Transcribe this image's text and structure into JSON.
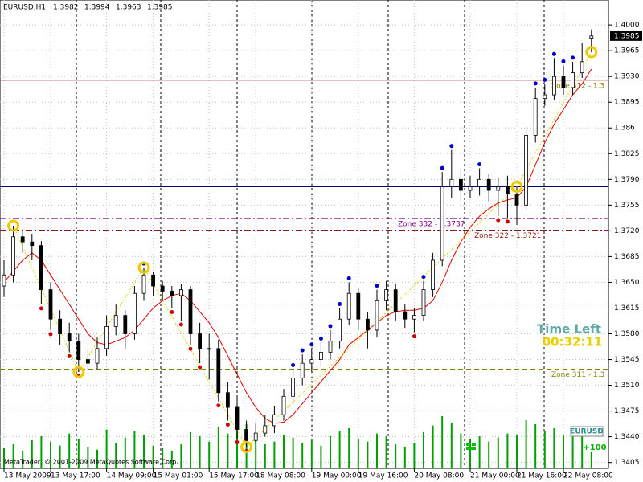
{
  "chart_data": {
    "type": "candlestick",
    "title": "EURUSD,H1",
    "open": [
      1.3645,
      1.366,
      1.3712,
      1.3705,
      1.37,
      1.364,
      1.36,
      1.358,
      1.357,
      1.3545,
      1.354,
      1.356,
      1.359,
      1.3605,
      1.358,
      1.3635,
      1.366,
      1.3645,
      1.3638,
      1.3632,
      1.364,
      1.358,
      1.356,
      1.356,
      1.35,
      1.348,
      1.345,
      1.3435,
      1.3445,
      1.3455,
      1.347,
      1.3495,
      1.352,
      1.354,
      1.3545,
      1.3555,
      1.357,
      1.36,
      1.3635,
      1.36,
      1.3585,
      1.3625,
      1.364,
      1.361,
      1.36,
      1.3605,
      1.364,
      1.368,
      1.378,
      1.379,
      1.3775,
      1.378,
      1.379,
      1.3775,
      1.378,
      1.377,
      1.3755,
      1.385,
      1.39,
      1.3905,
      1.393,
      1.3915,
      1.3935,
      1.3982
    ],
    "high": [
      1.368,
      1.3727,
      1.3722,
      1.3716,
      1.3706,
      1.365,
      1.3612,
      1.3595,
      1.358,
      1.356,
      1.3575,
      1.3605,
      1.362,
      1.3612,
      1.3645,
      1.367,
      1.3664,
      1.3652,
      1.3645,
      1.3648,
      1.3645,
      1.3595,
      1.358,
      1.3572,
      1.3515,
      1.3495,
      1.3462,
      1.3458,
      1.347,
      1.3482,
      1.3505,
      1.3532,
      1.3552,
      1.356,
      1.3568,
      1.3585,
      1.3615,
      1.365,
      1.3642,
      1.361,
      1.364,
      1.3652,
      1.3648,
      1.362,
      1.3615,
      1.3652,
      1.369,
      1.38,
      1.383,
      1.3805,
      1.3795,
      1.3805,
      1.3798,
      1.3792,
      1.3795,
      1.378,
      1.3862,
      1.3915,
      1.392,
      1.3955,
      1.3945,
      1.395,
      1.3975,
      1.3994
    ],
    "low": [
      1.363,
      1.365,
      1.369,
      1.368,
      1.362,
      1.3585,
      1.3565,
      1.3555,
      1.3528,
      1.353,
      1.3532,
      1.355,
      1.3578,
      1.356,
      1.3572,
      1.3625,
      1.3632,
      1.3625,
      1.3615,
      1.3598,
      1.3565,
      1.354,
      1.3518,
      1.3488,
      1.3462,
      1.3438,
      1.3426,
      1.343,
      1.344,
      1.3445,
      1.3462,
      1.3485,
      1.351,
      1.3528,
      1.3535,
      1.3545,
      1.356,
      1.3592,
      1.3585,
      1.356,
      1.3575,
      1.3612,
      1.3598,
      1.3588,
      1.3582,
      1.3598,
      1.363,
      1.3672,
      1.3765,
      1.376,
      1.3765,
      1.3768,
      1.376,
      1.374,
      1.3738,
      1.3728,
      1.3748,
      1.384,
      1.389,
      1.3898,
      1.3905,
      1.3905,
      1.3928,
      1.3963
    ],
    "close": [
      1.366,
      1.3712,
      1.3705,
      1.37,
      1.364,
      1.36,
      1.358,
      1.357,
      1.3545,
      1.354,
      1.356,
      1.359,
      1.3605,
      1.358,
      1.3635,
      1.366,
      1.3645,
      1.3638,
      1.3632,
      1.364,
      1.358,
      1.356,
      1.356,
      1.35,
      1.348,
      1.345,
      1.3435,
      1.3445,
      1.3455,
      1.347,
      1.3495,
      1.352,
      1.354,
      1.3545,
      1.3555,
      1.357,
      1.36,
      1.3635,
      1.36,
      1.3585,
      1.3625,
      1.364,
      1.361,
      1.36,
      1.3605,
      1.364,
      1.368,
      1.378,
      1.379,
      1.3775,
      1.378,
      1.379,
      1.3775,
      1.378,
      1.377,
      1.3755,
      1.385,
      1.39,
      1.3905,
      1.393,
      1.3915,
      1.3935,
      1.395,
      1.3985
    ],
    "ma": [
      1.365,
      1.3665,
      1.368,
      1.369,
      1.368,
      1.366,
      1.364,
      1.362,
      1.36,
      1.358,
      1.3568,
      1.3565,
      1.357,
      1.3575,
      1.3585,
      1.36,
      1.3615,
      1.3625,
      1.3632,
      1.3635,
      1.3625,
      1.361,
      1.3595,
      1.3575,
      1.355,
      1.3525,
      1.35,
      1.348,
      1.3465,
      1.3458,
      1.346,
      1.347,
      1.3485,
      1.35,
      1.3515,
      1.353,
      1.3545,
      1.3565,
      1.3575,
      1.3585,
      1.3595,
      1.3605,
      1.361,
      1.3612,
      1.3612,
      1.3615,
      1.3625,
      1.365,
      1.368,
      1.3705,
      1.3725,
      1.374,
      1.375,
      1.3758,
      1.3762,
      1.3765,
      1.378,
      1.381,
      1.384,
      1.3865,
      1.3885,
      1.3905,
      1.392,
      1.394
    ],
    "ma_color": "#e00000",
    "volume": [
      1500,
      1800,
      1300,
      2100,
      2400,
      2000,
      1700,
      2600,
      2200,
      1600,
      1400,
      2900,
      1900,
      2300,
      2800,
      2500,
      1700,
      1500,
      1300,
      1800,
      2700,
      2400,
      2000,
      3100,
      2600,
      2900,
      3300,
      2200,
      1800,
      2000,
      2500,
      2300,
      1900,
      2100,
      1700,
      2400,
      2800,
      3000,
      2200,
      2000,
      2600,
      2400,
      1800,
      1600,
      1900,
      2700,
      3200,
      3900,
      3400,
      2600,
      2200,
      2400,
      2000,
      2300,
      2600,
      2500,
      3600,
      3300,
      2800,
      3000,
      2500,
      2700,
      2900,
      1200
    ],
    "volume_color": "#00a000",
    "up_fractals": [
      15,
      31,
      32,
      33,
      34,
      35,
      36,
      37,
      40,
      45,
      47,
      48,
      51,
      57,
      58,
      59,
      60,
      61
    ],
    "down_fractals": [
      4,
      5,
      7,
      8,
      18,
      19,
      20,
      21,
      23,
      24,
      25,
      26,
      44,
      53,
      54
    ],
    "zigzag": [
      1,
      8,
      15,
      26,
      55,
      63
    ],
    "levels": [
      {
        "price": 1.3925,
        "color": "#c00000",
        "style": "solid",
        "label": "Zone 312 - 1.3",
        "label_color": "#808000"
      },
      {
        "price": 1.378,
        "color": "#000080",
        "style": "solid"
      },
      {
        "price": 1.3737,
        "color": "#800080",
        "style": "dashdot",
        "label": "Zone 332 - 1.3737",
        "label_color": "#800080"
      },
      {
        "price": 1.3721,
        "color": "#8b1a1a",
        "style": "dashdot",
        "label": "Zone 322 - 1.3721",
        "label_color": "#8b1a1a"
      },
      {
        "price": 1.3532,
        "color": "#808000",
        "style": "dashed",
        "label": "Zone 311 - 1.3",
        "label_color": "#808000"
      }
    ],
    "ylim": [
      1.3397,
      1.4034
    ],
    "yticks": [
      {
        "value": 1.4,
        "label": "1.4000"
      },
      1.3965,
      {
        "value": 1.393,
        "label": "1.3930"
      },
      1.3895,
      1.386,
      1.3825,
      {
        "value": 1.379,
        "label": "1.3790"
      },
      1.3755,
      {
        "value": 1.372,
        "label": "1.3720"
      },
      1.3685,
      {
        "value": 1.365,
        "label": "1.3650"
      },
      1.3615,
      {
        "value": 1.358,
        "label": "1.3580"
      },
      1.3545,
      {
        "value": 1.351,
        "label": "1.3510"
      },
      1.3475,
      {
        "value": 1.344,
        "label": "1.3440"
      },
      1.3405
    ],
    "xticks": [
      {
        "value": 0,
        "label": "13 May 2009"
      },
      {
        "value": 5,
        "label": "13 May 17:00"
      },
      {
        "value": 11,
        "label": "14 May 09:00"
      },
      {
        "value": 16,
        "label": "15 May 01:00"
      },
      {
        "value": 22,
        "label": "15 May 17:00"
      },
      {
        "value": 27,
        "label": "18 May 08:00"
      },
      {
        "value": 33,
        "label": "19 May 00:00"
      },
      {
        "value": 38,
        "label": "19 May 16:00"
      },
      {
        "value": 44,
        "label": "20 May 08:00"
      },
      {
        "value": 50,
        "label": "21 May 00:00"
      },
      {
        "value": 55,
        "label": "21 May 16:00"
      },
      {
        "value": 60,
        "label": "22 May 08:00"
      }
    ],
    "grid": true,
    "time_left_label": "Time Left",
    "time_left": "00:32:11",
    "copyright": "MetaTrader, © 2001-2009 MetaQuotes Software Corp.",
    "symbol_badge": "EURUSD",
    "badge_value": "+100"
  }
}
